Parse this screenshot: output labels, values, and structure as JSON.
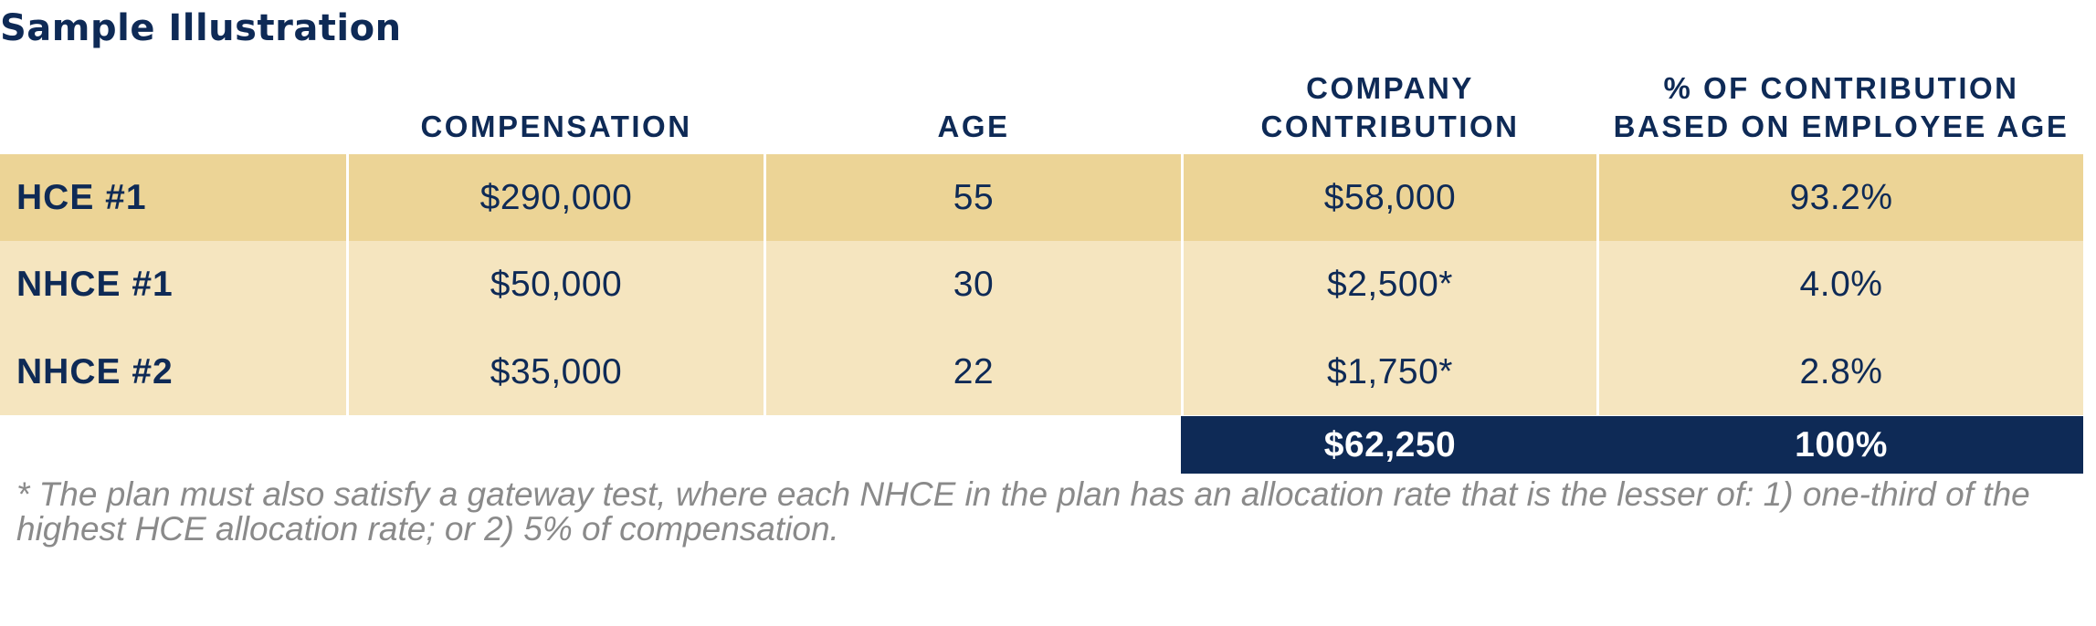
{
  "title": "Sample Illustration",
  "table": {
    "headers": {
      "compensation": "COMPENSATION",
      "age": "AGE",
      "company_contribution_line1": "COMPANY",
      "company_contribution_line2": "CONTRIBUTION",
      "pct_line1": "% OF CONTRIBUTION",
      "pct_line2": "BASED ON EMPLOYEE AGE"
    },
    "rows": [
      {
        "label": "HCE #1",
        "compensation": "$290,000",
        "age": "55",
        "contribution": "$58,000",
        "pct": "93.2%"
      },
      {
        "label": "NHCE #1",
        "compensation": "$50,000",
        "age": "30",
        "contribution": "$2,500*",
        "pct": "4.0%"
      },
      {
        "label": "NHCE #2",
        "compensation": "$35,000",
        "age": "22",
        "contribution": "$1,750*",
        "pct": "2.8%"
      }
    ],
    "totals": {
      "contribution": "$62,250",
      "pct": "100%"
    }
  },
  "footnote": "* The plan must also satisfy a gateway test, where each NHCE in the plan has an allocation rate that is the lesser of: 1) one-third of the highest HCE allocation rate; or 2) 5% of compensation.",
  "colors": {
    "navy": "#0e2a56",
    "row_dark": "#ecd496",
    "row_light": "#f5e5bf",
    "footnote_gray": "#8a8a8a"
  }
}
